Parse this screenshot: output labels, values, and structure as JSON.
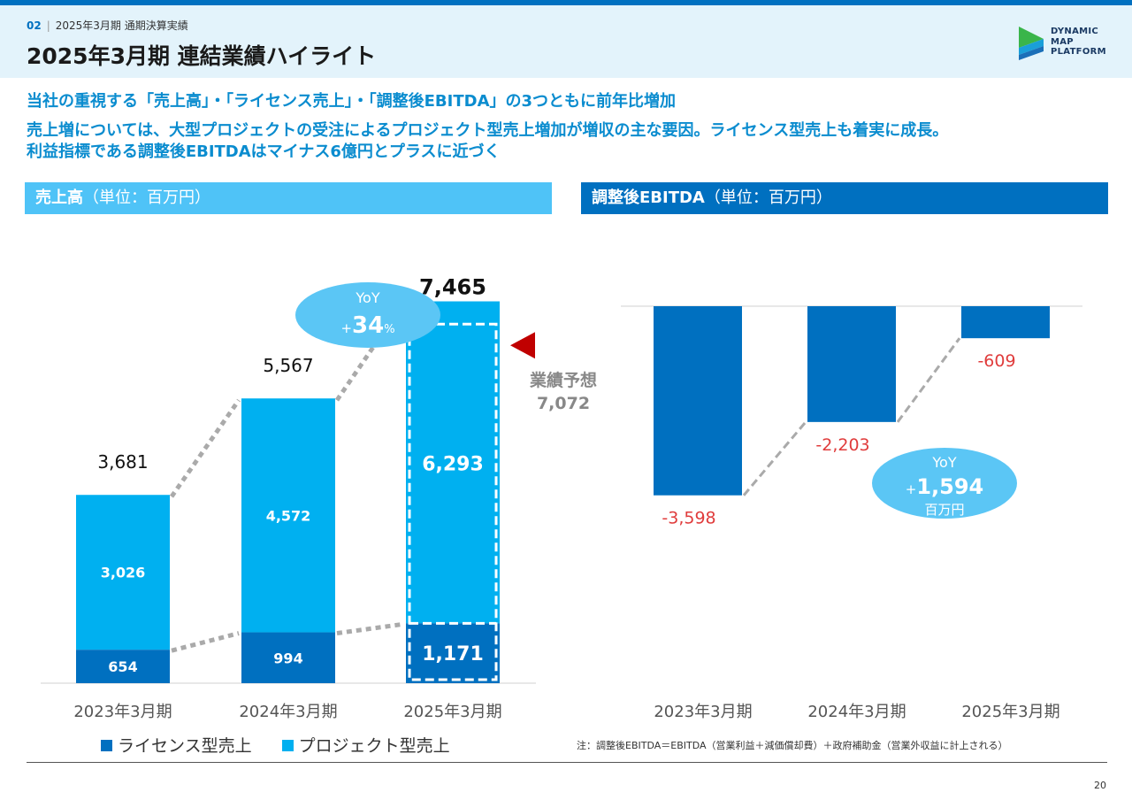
{
  "header": {
    "section_number": "02",
    "section_label": "2025年3月期 通期決算実績",
    "title": "2025年3月期 連結業績ハイライト"
  },
  "logo": {
    "lines": [
      "DYNAMIC",
      "MAP",
      "PLATFORM"
    ]
  },
  "headlines": {
    "line1": "当社の重視する「売上高」・「ライセンス売上」・「調整後EBITDA」の3つともに前年比増加",
    "line2": "売上増については、大型プロジェクトの受注によるプロジェクト型売上増加が増収の主な要因。ライセンス型売上も着実に成長。",
    "line3": "利益指標である調整後EBITDAはマイナス6億円とプラスに近づく"
  },
  "left_section": {
    "title": "売上高",
    "unit": "（単位：百万円）"
  },
  "right_section": {
    "title": "調整後EBITDA",
    "unit": "（単位：百万円）"
  },
  "colors": {
    "license": "#0070c0",
    "project": "#00b0f0",
    "negative_label": "#e03c3c",
    "bubble": "#5bc6f5",
    "forecast_arrow": "#c00000"
  },
  "chart_data": [
    {
      "type": "bar",
      "stacked": true,
      "categories": [
        "2023年3月期",
        "2024年3月期",
        "2025年3月期"
      ],
      "series": [
        {
          "name": "ライセンス型売上",
          "values": [
            654,
            994,
            1171
          ],
          "labels": [
            "654",
            "994",
            "1,171"
          ]
        },
        {
          "name": "プロジェクト型売上",
          "values": [
            3026,
            4572,
            6293
          ],
          "labels": [
            "3,026",
            "4,572",
            "6,293"
          ]
        }
      ],
      "totals": [
        3681,
        5567,
        7465
      ],
      "total_labels": [
        "3,681",
        "5,567",
        "7,465"
      ],
      "forecast": {
        "label": "業績予想",
        "value": 7072,
        "value_label": "7,072"
      },
      "yoy": {
        "label": "YoY",
        "sign": "+",
        "value": "34",
        "unit": "%"
      },
      "ylim": [
        0,
        8000
      ],
      "legend": "bottom"
    },
    {
      "type": "bar",
      "categories": [
        "2023年3月期",
        "2024年3月期",
        "2025年3月期"
      ],
      "values": [
        -3598,
        -2203,
        -609
      ],
      "labels": [
        "-3,598",
        "-2,203",
        "-609"
      ],
      "yoy": {
        "label": "YoY",
        "sign": "+",
        "value": "1,594",
        "unit": "百万円"
      },
      "ylim": [
        -4000,
        0
      ]
    }
  ],
  "note": "注：調整後EBITDA＝EBITDA（営業利益＋減価償却費）＋政府補助金（営業外収益に計上される）",
  "page_number": "20"
}
